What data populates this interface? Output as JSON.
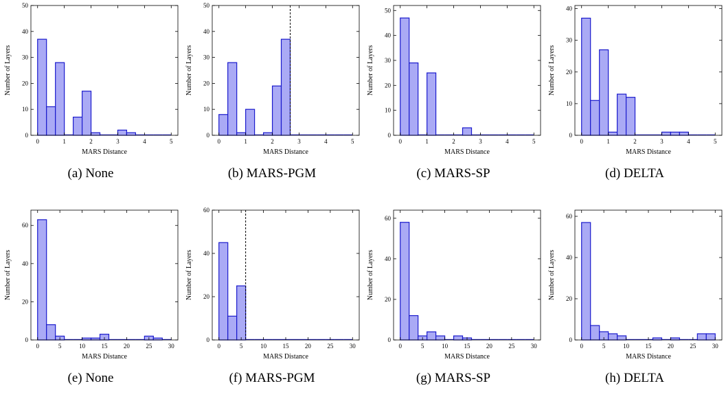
{
  "style": {
    "bar_fill": "#aaaaf5",
    "bar_stroke": "#1a1acc",
    "axis_color": "#000000",
    "threshold_color": "#000000"
  },
  "chart_data": [
    {
      "type": "bar",
      "caption": "(a) None",
      "xlabel": "MARS Distance",
      "ylabel": "Number of Layers",
      "xlim": [
        -0.25,
        5.25
      ],
      "ylim": [
        0,
        50
      ],
      "xticks": [
        0,
        1,
        2,
        3,
        4,
        5
      ],
      "yticks": [
        0,
        10,
        20,
        30,
        40,
        50
      ],
      "bin_edges": [
        0,
        0.333,
        0.667,
        1.0,
        1.333,
        1.667,
        2.0,
        2.333,
        2.667,
        3.0,
        3.333,
        3.667,
        4.0,
        4.333,
        4.667,
        5.0
      ],
      "values": [
        37,
        11,
        28,
        0,
        7,
        17,
        1,
        0,
        0,
        2,
        1,
        0,
        0,
        0,
        0
      ],
      "threshold": null
    },
    {
      "type": "bar",
      "caption": "(b) MARS-PGM",
      "xlabel": "MARS Distance",
      "ylabel": "Number of Layers",
      "xlim": [
        -0.25,
        5.25
      ],
      "ylim": [
        0,
        50
      ],
      "xticks": [
        0,
        1,
        2,
        3,
        4,
        5
      ],
      "yticks": [
        0,
        10,
        20,
        30,
        40,
        50
      ],
      "bin_edges": [
        0,
        0.333,
        0.667,
        1.0,
        1.333,
        1.667,
        2.0,
        2.333,
        2.667,
        3.0,
        3.333,
        3.667,
        4.0,
        4.333,
        4.667,
        5.0
      ],
      "values": [
        8,
        28,
        1,
        10,
        0,
        1,
        19,
        37,
        0,
        0,
        0,
        0,
        0,
        0,
        0
      ],
      "threshold": 2.667
    },
    {
      "type": "bar",
      "caption": "(c) MARS-SP",
      "xlabel": "MARS Distance",
      "ylabel": "Number of Layers",
      "xlim": [
        -0.25,
        5.25
      ],
      "ylim": [
        0,
        52
      ],
      "xticks": [
        0,
        1,
        2,
        3,
        4,
        5
      ],
      "yticks": [
        0,
        10,
        20,
        30,
        40,
        50
      ],
      "bin_edges": [
        0,
        0.333,
        0.667,
        1.0,
        1.333,
        1.667,
        2.0,
        2.333,
        2.667,
        3.0,
        3.333,
        3.667,
        4.0,
        4.333,
        4.667,
        5.0
      ],
      "values": [
        47,
        29,
        0,
        25,
        0,
        0,
        0,
        3,
        0,
        0,
        0,
        0,
        0,
        0,
        0
      ],
      "threshold": null
    },
    {
      "type": "bar",
      "caption": "(d) DELTA",
      "xlabel": "MARS Distance",
      "ylabel": "Number of Layers",
      "xlim": [
        -0.25,
        5.25
      ],
      "ylim": [
        0,
        41
      ],
      "xticks": [
        0,
        1,
        2,
        3,
        4,
        5
      ],
      "yticks": [
        0,
        10,
        20,
        30,
        40
      ],
      "bin_edges": [
        0,
        0.333,
        0.667,
        1.0,
        1.333,
        1.667,
        2.0,
        2.333,
        2.667,
        3.0,
        3.333,
        3.667,
        4.0,
        4.333,
        4.667,
        5.0
      ],
      "values": [
        37,
        11,
        27,
        1,
        13,
        12,
        0,
        0,
        0,
        1,
        1,
        1,
        0,
        0,
        0
      ],
      "threshold": null
    },
    {
      "type": "bar",
      "caption": "(e) None",
      "xlabel": "MARS Distance",
      "ylabel": "Number of Layers",
      "xlim": [
        -1.5,
        31.5
      ],
      "ylim": [
        0,
        68
      ],
      "xticks": [
        0,
        5,
        10,
        15,
        20,
        25,
        30
      ],
      "yticks": [
        0,
        20,
        40,
        60
      ],
      "bin_edges": [
        0,
        2,
        4,
        6,
        8,
        10,
        12,
        14,
        16,
        18,
        20,
        22,
        24,
        26,
        28,
        30
      ],
      "values": [
        63,
        8,
        2,
        0,
        0,
        1,
        1,
        3,
        0,
        0,
        0,
        0,
        2,
        1,
        0
      ],
      "threshold": null
    },
    {
      "type": "bar",
      "caption": "(f) MARS-PGM",
      "xlabel": "MARS Distance",
      "ylabel": "Number of Layers",
      "xlim": [
        -1.5,
        31.5
      ],
      "ylim": [
        0,
        60
      ],
      "xticks": [
        0,
        5,
        10,
        15,
        20,
        25,
        30
      ],
      "yticks": [
        0,
        20,
        40,
        60
      ],
      "bin_edges": [
        0,
        2,
        4,
        6,
        8,
        10,
        12,
        14,
        16,
        18,
        20,
        22,
        24,
        26,
        28,
        30
      ],
      "values": [
        45,
        11,
        25,
        0,
        0,
        0,
        0,
        0,
        0,
        0,
        0,
        0,
        0,
        0,
        0
      ],
      "threshold": 6
    },
    {
      "type": "bar",
      "caption": "(g) MARS-SP",
      "xlabel": "MARS Distance",
      "ylabel": "Number of Layers",
      "xlim": [
        -1.5,
        31.5
      ],
      "ylim": [
        0,
        64
      ],
      "xticks": [
        0,
        5,
        10,
        15,
        20,
        25,
        30
      ],
      "yticks": [
        0,
        20,
        40,
        60
      ],
      "bin_edges": [
        0,
        2,
        4,
        6,
        8,
        10,
        12,
        14,
        16,
        18,
        20,
        22,
        24,
        26,
        28,
        30
      ],
      "values": [
        58,
        12,
        2,
        4,
        2,
        0,
        2,
        1,
        0,
        0,
        0,
        0,
        0,
        0,
        0
      ],
      "threshold": null
    },
    {
      "type": "bar",
      "caption": "(h) DELTA",
      "xlabel": "MARS Distance",
      "ylabel": "Number of Layers",
      "xlim": [
        -1.5,
        31.5
      ],
      "ylim": [
        0,
        63
      ],
      "xticks": [
        0,
        5,
        10,
        15,
        20,
        25,
        30
      ],
      "yticks": [
        0,
        20,
        40,
        60
      ],
      "bin_edges": [
        0,
        2,
        4,
        6,
        8,
        10,
        12,
        14,
        16,
        18,
        20,
        22,
        24,
        26,
        28,
        30
      ],
      "values": [
        57,
        7,
        4,
        3,
        2,
        0,
        0,
        0,
        1,
        0,
        1,
        0,
        0,
        3,
        3
      ],
      "threshold": null
    }
  ]
}
